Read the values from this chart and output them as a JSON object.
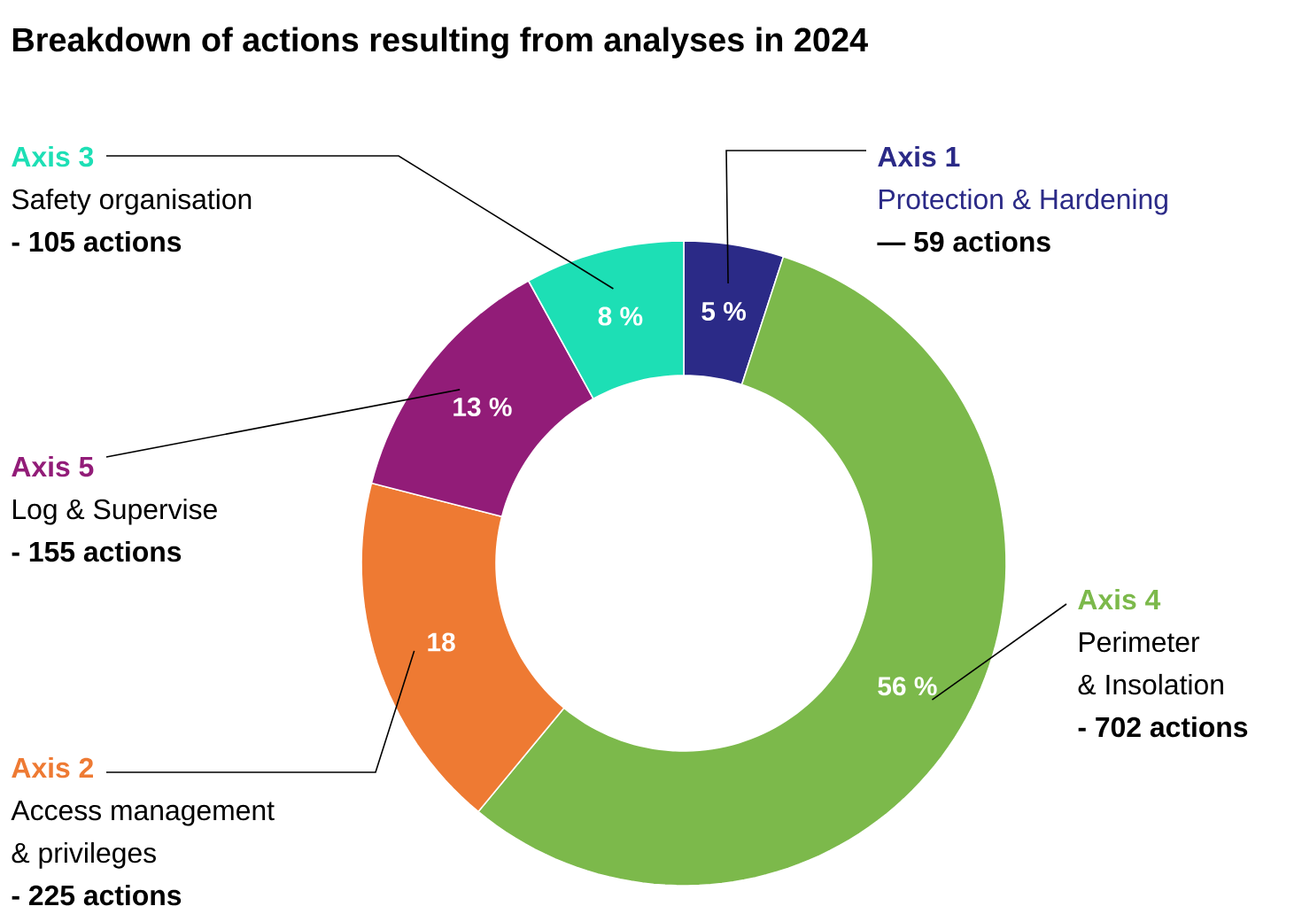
{
  "chart_data": {
    "type": "donut",
    "title": "Breakdown of actions resulting from analyses in 2024",
    "categories": [
      "Axis 1",
      "Axis 4",
      "Axis 2",
      "Axis 5",
      "Axis 3"
    ],
    "values": [
      5,
      56,
      18,
      13,
      8
    ],
    "colors": [
      "#2b2a87",
      "#7cb94b",
      "#ee7a33",
      "#921c78",
      "#1ddfb5"
    ],
    "value_labels": [
      "5 %",
      "56 %",
      "18",
      "13 %",
      "8 %"
    ],
    "annotations": [
      "Protection & Hardening",
      "— 59 actions",
      "Perimeter",
      "& Insolation",
      "- 702 actions",
      "Access management",
      "& privileges",
      "- 225 actions",
      "Log & Supervise",
      "- 155  actions",
      "Safety organisation",
      "- 105 actions"
    ]
  }
}
